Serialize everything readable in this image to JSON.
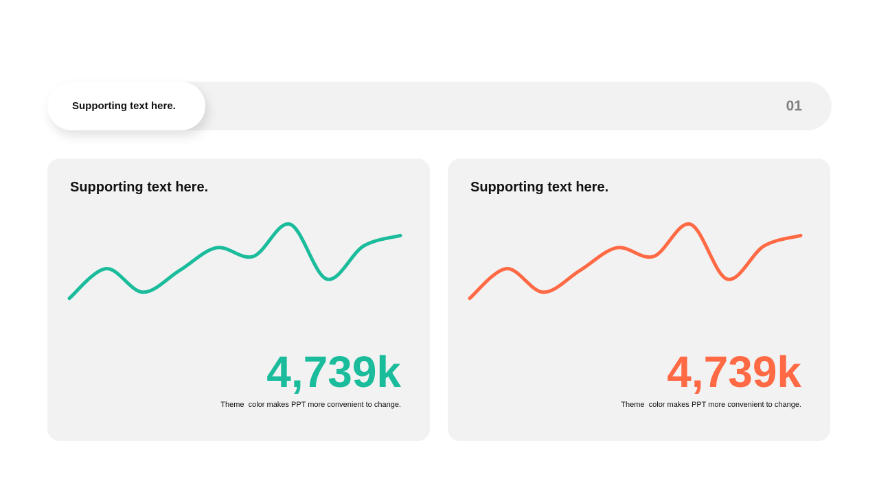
{
  "header": {
    "pill_text": "Supporting text here.",
    "number": "01"
  },
  "cards": [
    {
      "title": "Supporting text here.",
      "value": "4,739k",
      "caption": "Theme  color makes PPT more convenient to change.",
      "accent": "#1abc9c",
      "line_values": [
        12,
        46,
        19,
        44,
        70,
        60,
        97,
        34,
        72,
        84
      ],
      "line_range": [
        0,
        100
      ]
    },
    {
      "title": "Supporting text here.",
      "value": "4,739k",
      "caption": "Theme  color makes PPT more convenient to change.",
      "accent": "#ff6a45",
      "line_values": [
        12,
        46,
        19,
        44,
        70,
        60,
        97,
        34,
        72,
        84
      ],
      "line_range": [
        0,
        100
      ]
    }
  ]
}
